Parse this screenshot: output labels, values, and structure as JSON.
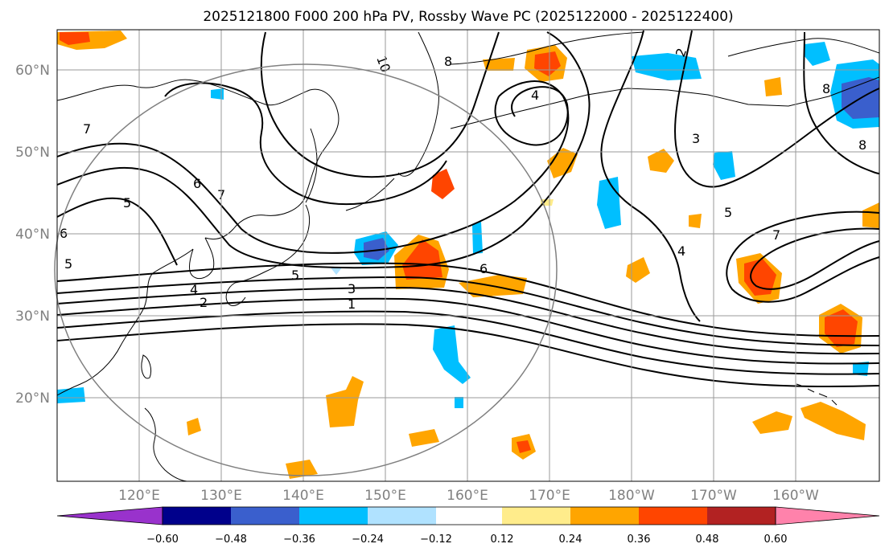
{
  "title": "2025121800 F000 200 hPa PV, Rossby Wave PC (2025122000 - 2025122400)",
  "lon_ticks": [
    "120°E",
    "130°E",
    "140°E",
    "150°E",
    "160°E",
    "170°E",
    "180°W",
    "170°W",
    "160°W"
  ],
  "lat_ticks": [
    "60°N",
    "50°N",
    "40°N",
    "30°N",
    "20°N"
  ],
  "colorbar": {
    "colors": [
      "#9932cc",
      "#00008b",
      "#3a5fcd",
      "#00bfff",
      "#b0e2ff",
      "#ffffff",
      "#ffec8b",
      "#ffa500",
      "#ff4500",
      "#b22222",
      "#ff82ab"
    ],
    "tick_labels": [
      "−0.60",
      "−0.48",
      "−0.36",
      "−0.24",
      "−0.12",
      "0.12",
      "0.24",
      "0.36",
      "0.48",
      "0.60"
    ]
  },
  "contour_labels": [
    "10",
    "8",
    "4",
    "2",
    "3",
    "8",
    "8",
    "7",
    "5",
    "6",
    "7",
    "6",
    "5",
    "4",
    "2",
    "5",
    "3",
    "1",
    "6",
    "5",
    "7",
    "4"
  ],
  "colors": {
    "grid": "#9a9a9a",
    "circle": "#808080",
    "positive": "#ffa500",
    "negative": "#00bfff"
  }
}
